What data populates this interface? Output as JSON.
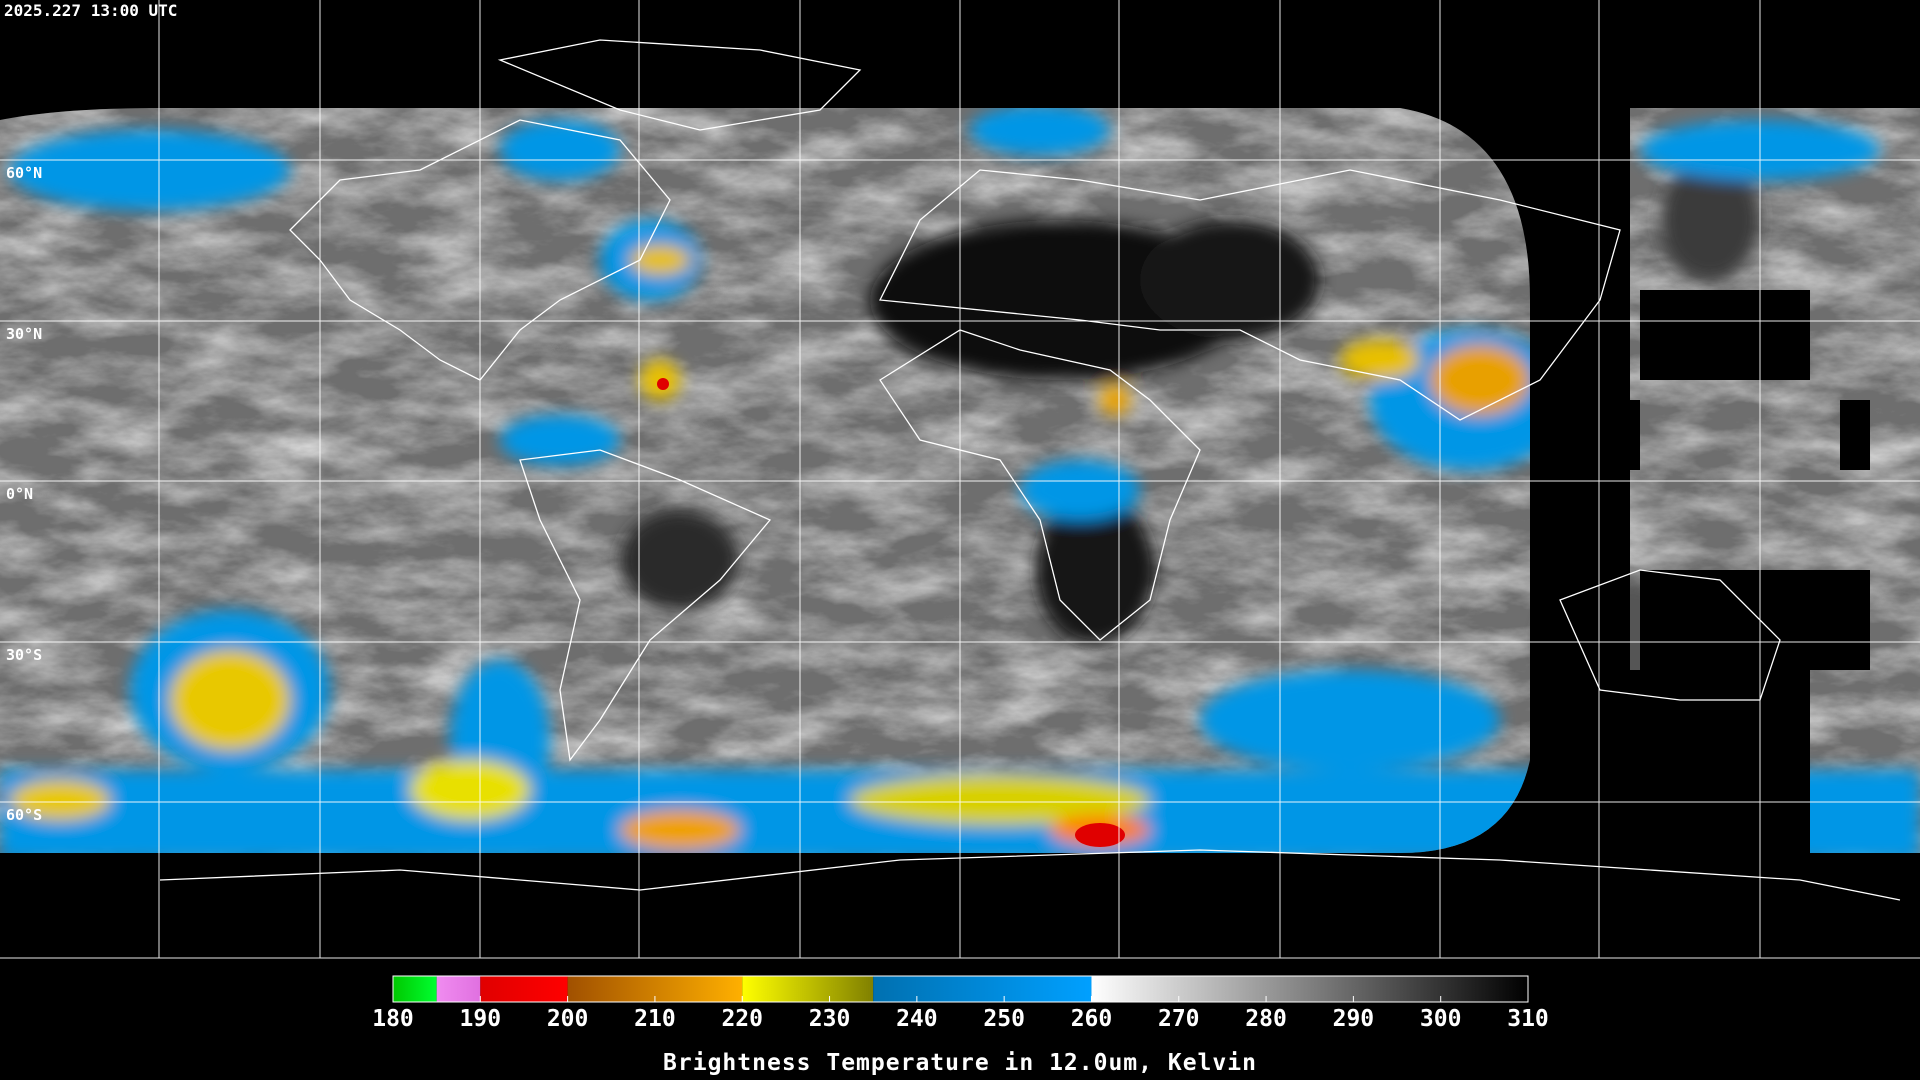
{
  "timestamp": "2025.227 13:00 UTC",
  "latitude_labels": [
    "60°N",
    "30°N",
    "0°N",
    "30°S",
    "60°S"
  ],
  "colorbar": {
    "title": "Brightness Temperature in 12.0um, Kelvin",
    "range": [
      180,
      310
    ],
    "ticks": [
      180,
      190,
      200,
      210,
      220,
      230,
      240,
      250,
      260,
      270,
      280,
      290,
      300,
      310
    ],
    "segments": [
      {
        "from": 180,
        "to": 185,
        "colors": [
          "#00c800",
          "#00ff30"
        ]
      },
      {
        "from": 185,
        "to": 190,
        "colors": [
          "#f08cf0",
          "#e070e0"
        ]
      },
      {
        "from": 190,
        "to": 200,
        "colors": [
          "#e00000",
          "#ff0000"
        ]
      },
      {
        "from": 200,
        "to": 220,
        "colors": [
          "#a05000",
          "#ffb000"
        ]
      },
      {
        "from": 220,
        "to": 235,
        "colors": [
          "#ffff00",
          "#808000"
        ]
      },
      {
        "from": 235,
        "to": 260,
        "colors": [
          "#0070b0",
          "#00a0ff"
        ]
      },
      {
        "from": 260,
        "to": 310,
        "colors": [
          "#ffffff",
          "#000000"
        ]
      }
    ]
  }
}
